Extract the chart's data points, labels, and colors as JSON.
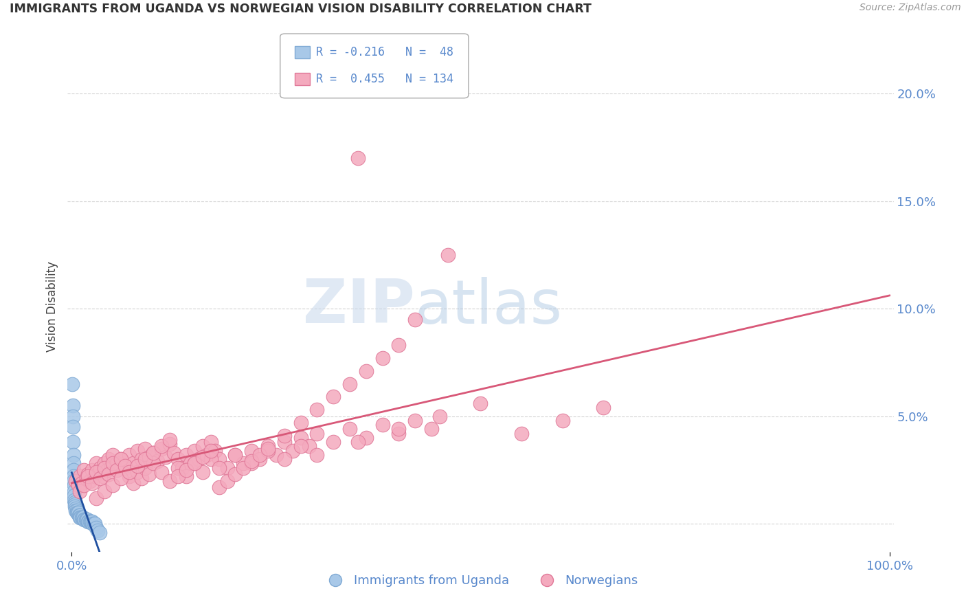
{
  "title": "IMMIGRANTS FROM UGANDA VS NORWEGIAN VISION DISABILITY CORRELATION CHART",
  "source": "Source: ZipAtlas.com",
  "ylabel": "Vision Disability",
  "yticks": [
    0.0,
    0.05,
    0.1,
    0.15,
    0.2
  ],
  "ytick_labels": [
    "",
    "5.0%",
    "10.0%",
    "15.0%",
    "20.0%"
  ],
  "xlim": [
    -0.005,
    1.005
  ],
  "ylim": [
    -0.013,
    0.215
  ],
  "blue_color": "#a8c8e8",
  "pink_color": "#f4aabe",
  "blue_edge": "#80aad4",
  "pink_edge": "#e07898",
  "blue_line_color": "#2050a0",
  "pink_line_color": "#d85878",
  "background_color": "#ffffff",
  "grid_color": "#c8c8c8",
  "title_color": "#333333",
  "axis_label_color": "#5888cc",
  "uganda_x": [
    0.0005,
    0.001,
    0.001,
    0.001,
    0.001,
    0.002,
    0.002,
    0.002,
    0.002,
    0.002,
    0.003,
    0.003,
    0.003,
    0.003,
    0.004,
    0.004,
    0.004,
    0.005,
    0.005,
    0.006,
    0.006,
    0.007,
    0.008,
    0.009,
    0.01,
    0.01,
    0.01,
    0.011,
    0.012,
    0.013,
    0.014,
    0.015,
    0.016,
    0.017,
    0.018,
    0.019,
    0.02,
    0.021,
    0.022,
    0.023,
    0.024,
    0.025,
    0.026,
    0.027,
    0.028,
    0.03,
    0.032,
    0.034
  ],
  "uganda_y": [
    0.065,
    0.055,
    0.05,
    0.045,
    0.038,
    0.032,
    0.028,
    0.025,
    0.022,
    0.02,
    0.018,
    0.015,
    0.013,
    0.011,
    0.01,
    0.009,
    0.008,
    0.007,
    0.006,
    0.006,
    0.005,
    0.005,
    0.005,
    0.004,
    0.004,
    0.004,
    0.003,
    0.003,
    0.003,
    0.003,
    0.003,
    0.002,
    0.002,
    0.002,
    0.002,
    0.002,
    0.001,
    0.001,
    0.001,
    0.001,
    0.001,
    0.001,
    0.0,
    0.0,
    0.0,
    -0.002,
    -0.003,
    -0.004
  ],
  "norwegian_x": [
    0.005,
    0.008,
    0.01,
    0.012,
    0.015,
    0.018,
    0.02,
    0.022,
    0.025,
    0.028,
    0.03,
    0.033,
    0.035,
    0.038,
    0.04,
    0.043,
    0.045,
    0.048,
    0.05,
    0.055,
    0.06,
    0.065,
    0.07,
    0.075,
    0.08,
    0.085,
    0.09,
    0.095,
    0.1,
    0.105,
    0.11,
    0.115,
    0.12,
    0.125,
    0.13,
    0.135,
    0.14,
    0.145,
    0.15,
    0.155,
    0.16,
    0.165,
    0.17,
    0.175,
    0.18,
    0.19,
    0.2,
    0.21,
    0.22,
    0.23,
    0.24,
    0.25,
    0.26,
    0.27,
    0.28,
    0.29,
    0.3,
    0.32,
    0.34,
    0.36,
    0.38,
    0.4,
    0.42,
    0.44,
    0.01,
    0.015,
    0.02,
    0.025,
    0.03,
    0.035,
    0.04,
    0.045,
    0.05,
    0.055,
    0.06,
    0.065,
    0.07,
    0.075,
    0.08,
    0.085,
    0.09,
    0.095,
    0.1,
    0.11,
    0.12,
    0.13,
    0.14,
    0.15,
    0.16,
    0.17,
    0.18,
    0.2,
    0.22,
    0.24,
    0.26,
    0.28,
    0.3,
    0.35,
    0.4,
    0.45,
    0.5,
    0.55,
    0.6,
    0.65,
    0.03,
    0.04,
    0.05,
    0.06,
    0.07,
    0.08,
    0.09,
    0.1,
    0.11,
    0.12,
    0.13,
    0.14,
    0.15,
    0.16,
    0.17,
    0.18,
    0.19,
    0.2,
    0.21,
    0.22,
    0.23,
    0.24,
    0.26,
    0.28,
    0.3,
    0.32,
    0.34,
    0.36,
    0.38,
    0.4,
    0.35,
    0.42,
    0.46
  ],
  "norwegian_y": [
    0.02,
    0.018,
    0.022,
    0.019,
    0.025,
    0.021,
    0.023,
    0.02,
    0.025,
    0.022,
    0.028,
    0.024,
    0.026,
    0.022,
    0.028,
    0.025,
    0.03,
    0.027,
    0.032,
    0.028,
    0.03,
    0.026,
    0.032,
    0.028,
    0.034,
    0.03,
    0.035,
    0.031,
    0.033,
    0.029,
    0.035,
    0.031,
    0.037,
    0.033,
    0.03,
    0.026,
    0.032,
    0.028,
    0.034,
    0.03,
    0.036,
    0.032,
    0.038,
    0.034,
    0.03,
    0.026,
    0.032,
    0.028,
    0.034,
    0.03,
    0.036,
    0.032,
    0.038,
    0.034,
    0.04,
    0.036,
    0.042,
    0.038,
    0.044,
    0.04,
    0.046,
    0.042,
    0.048,
    0.044,
    0.015,
    0.018,
    0.022,
    0.019,
    0.024,
    0.021,
    0.026,
    0.023,
    0.028,
    0.025,
    0.03,
    0.027,
    0.022,
    0.019,
    0.024,
    0.021,
    0.026,
    0.023,
    0.028,
    0.024,
    0.02,
    0.026,
    0.022,
    0.028,
    0.024,
    0.03,
    0.026,
    0.032,
    0.028,
    0.034,
    0.03,
    0.036,
    0.032,
    0.038,
    0.044,
    0.05,
    0.056,
    0.042,
    0.048,
    0.054,
    0.012,
    0.015,
    0.018,
    0.021,
    0.024,
    0.027,
    0.03,
    0.033,
    0.036,
    0.039,
    0.022,
    0.025,
    0.028,
    0.031,
    0.034,
    0.017,
    0.02,
    0.023,
    0.026,
    0.029,
    0.032,
    0.035,
    0.041,
    0.047,
    0.053,
    0.059,
    0.065,
    0.071,
    0.077,
    0.083,
    0.17,
    0.095,
    0.125
  ]
}
